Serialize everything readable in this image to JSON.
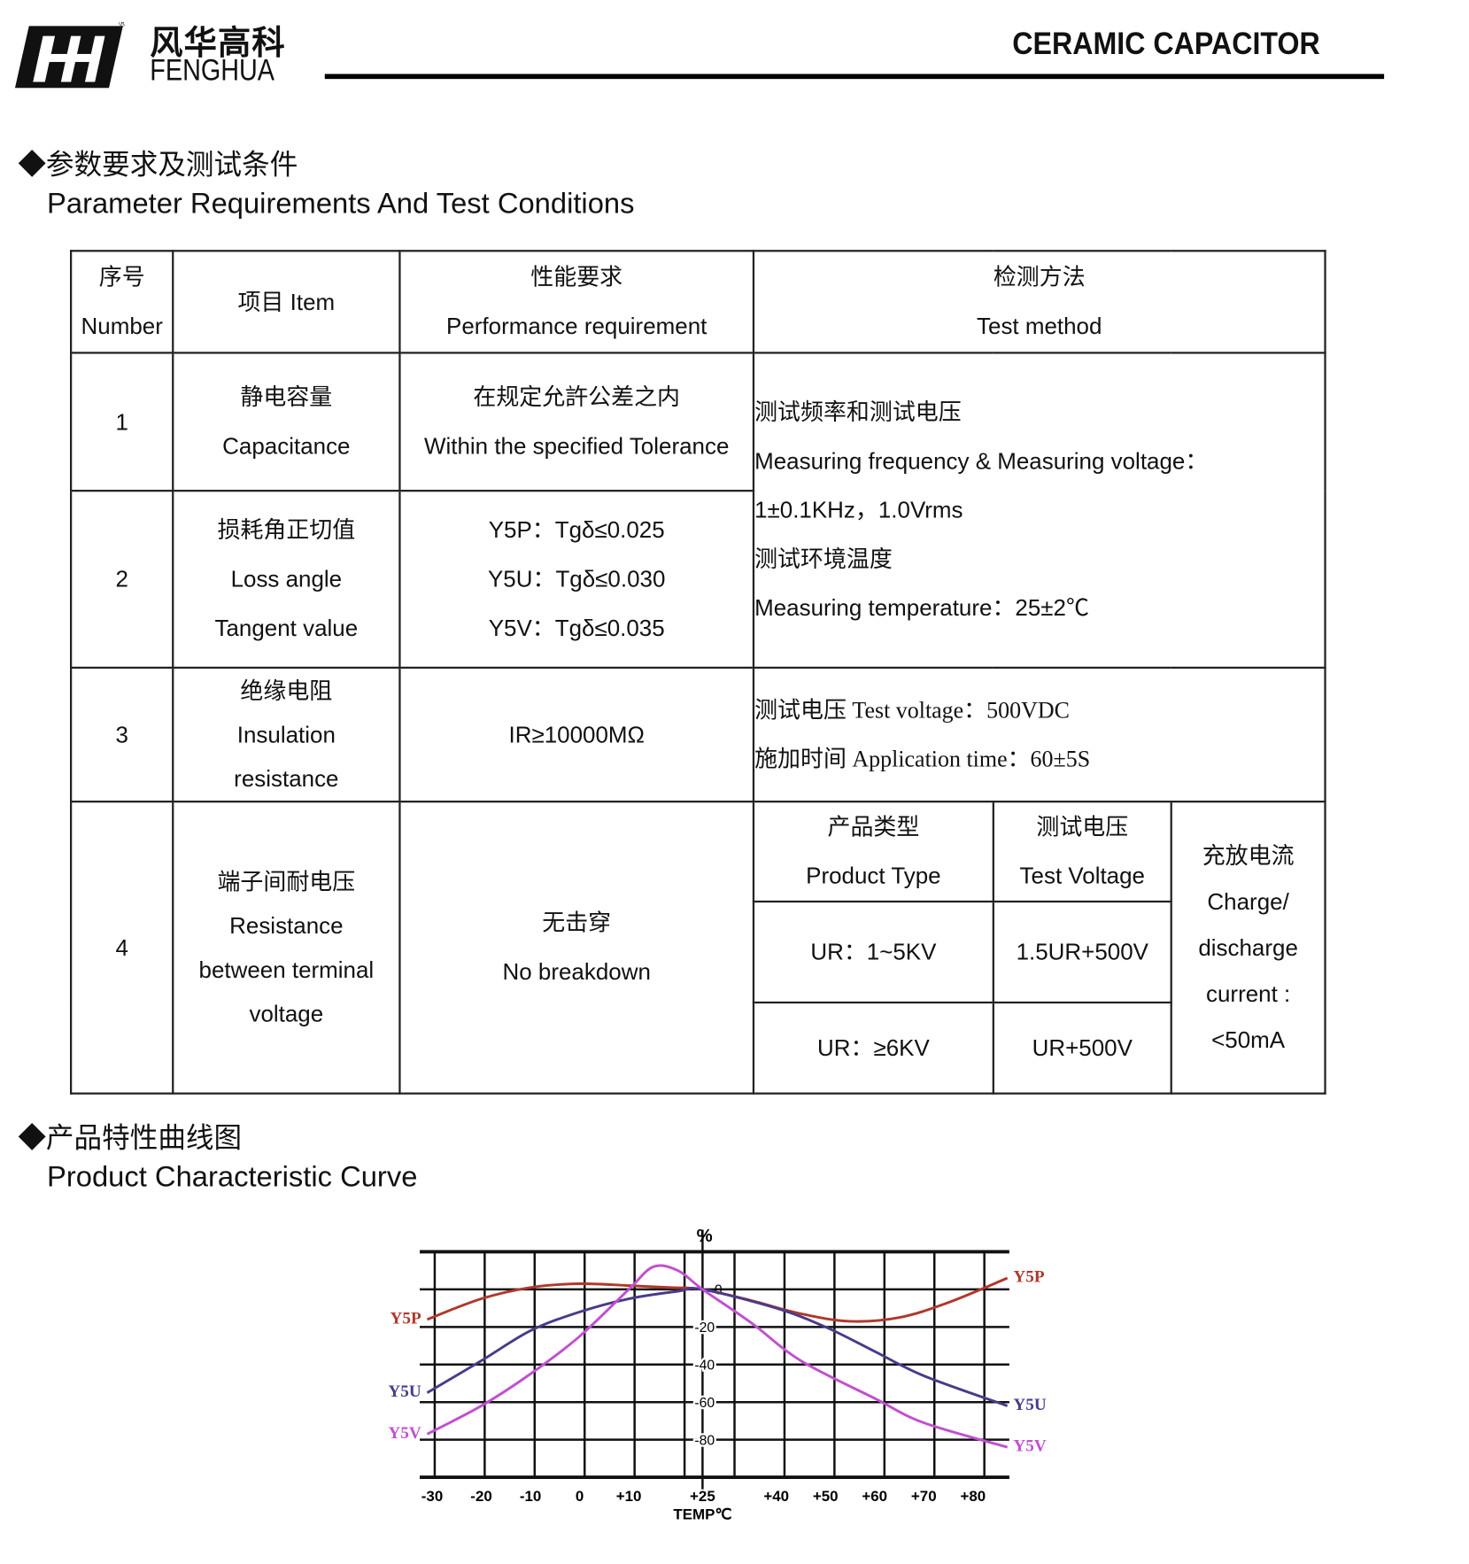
{
  "header": {
    "logo_cn": "风华高科",
    "logo_en": "FENGHUA",
    "logo_registered": "®",
    "doc_title": "CERAMIC CAPACITOR"
  },
  "section1": {
    "title_cn": "◆参数要求及测试条件",
    "title_en": "Parameter Requirements And Test Conditions"
  },
  "table": {
    "headers": {
      "number": [
        "序号",
        "Number"
      ],
      "item": "项目 Item",
      "performance": [
        "性能要求",
        "Performance requirement"
      ],
      "method": [
        "检测方法",
        "Test method"
      ]
    },
    "rows": [
      {
        "number": "1",
        "item": [
          "静电容量",
          "Capacitance"
        ],
        "performance": [
          "在规定允許公差之内",
          "Within the specified Tolerance"
        ]
      },
      {
        "number": "2",
        "item": [
          "损耗角正切值",
          "Loss angle",
          "Tangent value"
        ],
        "performance": [
          "Y5P：Tgδ≤0.025",
          "Y5U：Tgδ≤0.030",
          "Y5V：Tgδ≤0.035"
        ]
      },
      {
        "number": "3",
        "item": [
          "绝缘电阻",
          "Insulation",
          "resistance"
        ],
        "performance": [
          "IR≥10000MΩ"
        ],
        "method": [
          "测试电压 Test voltage：500VDC",
          "施加时间 Application time：60±5S"
        ]
      },
      {
        "number": "4",
        "item": [
          "端子间耐电压",
          "Resistance",
          "between terminal",
          "voltage"
        ],
        "performance": [
          "无击穿",
          "No breakdown"
        ],
        "method": {
          "product_type_header": [
            "产品类型",
            "Product Type"
          ],
          "test_voltage_header": [
            "测试电压",
            "Test Voltage"
          ],
          "rows": [
            {
              "type": "UR：1~5KV",
              "voltage": "1.5UR+500V"
            },
            {
              "type": "UR：≥6KV",
              "voltage": "UR+500V"
            }
          ],
          "current": [
            "充放电流",
            "Charge/",
            "discharge",
            "current :",
            "<50mA"
          ]
        }
      }
    ],
    "method_rows_1_2": [
      "测试频率和测试电压",
      "Measuring frequency & Measuring voltage：",
      "1±0.1KHz，1.0Vrms",
      "测试环境温度",
      "Measuring temperature：25±2℃"
    ]
  },
  "section2": {
    "title_cn": "◆产品特性曲线图",
    "title_en": "Product Characteristic Curve"
  },
  "chart_data": {
    "type": "line",
    "ylabel": "%",
    "xlabel": "TEMP℃",
    "x_ticks": [
      "-30",
      "-20",
      "-10",
      "0",
      "+10",
      "+25",
      "+40",
      "+50",
      "+60",
      "+70",
      "+80"
    ],
    "x_tick_values": [
      -30,
      -20,
      -10,
      0,
      10,
      25,
      40,
      50,
      60,
      70,
      80
    ],
    "y_ticks": [
      "0",
      "-20",
      "-40",
      "-60",
      "-80"
    ],
    "y_tick_values": [
      0,
      -20,
      -40,
      -60,
      -80
    ],
    "xlim": [
      -33,
      88
    ],
    "ylim": [
      -100,
      20
    ],
    "grid": true,
    "series": [
      {
        "name": "Y5P",
        "color": "#b0382c",
        "x": [
          -31,
          -20,
          -10,
          0,
          10,
          18,
          25,
          35,
          45,
          55,
          65,
          75,
          87
        ],
        "y": [
          -16,
          -5,
          1,
          3,
          2,
          1,
          0,
          -6,
          -13,
          -17,
          -15,
          -7,
          6
        ]
      },
      {
        "name": "Y5U",
        "color": "#4a3a8a",
        "x": [
          -31,
          -20,
          -10,
          0,
          10,
          20,
          25,
          40,
          50,
          60,
          70,
          87
        ],
        "y": [
          -55,
          -38,
          -22,
          -12,
          -5,
          -1,
          0,
          -10,
          -20,
          -33,
          -46,
          -62
        ]
      },
      {
        "name": "Y5V",
        "color": "#c24fd0",
        "x": [
          -31,
          -20,
          -10,
          0,
          10,
          15,
          20,
          25,
          35,
          45,
          60,
          70,
          87
        ],
        "y": [
          -77,
          -62,
          -45,
          -25,
          0,
          12,
          10,
          0,
          -18,
          -38,
          -58,
          -71,
          -84
        ]
      }
    ]
  }
}
